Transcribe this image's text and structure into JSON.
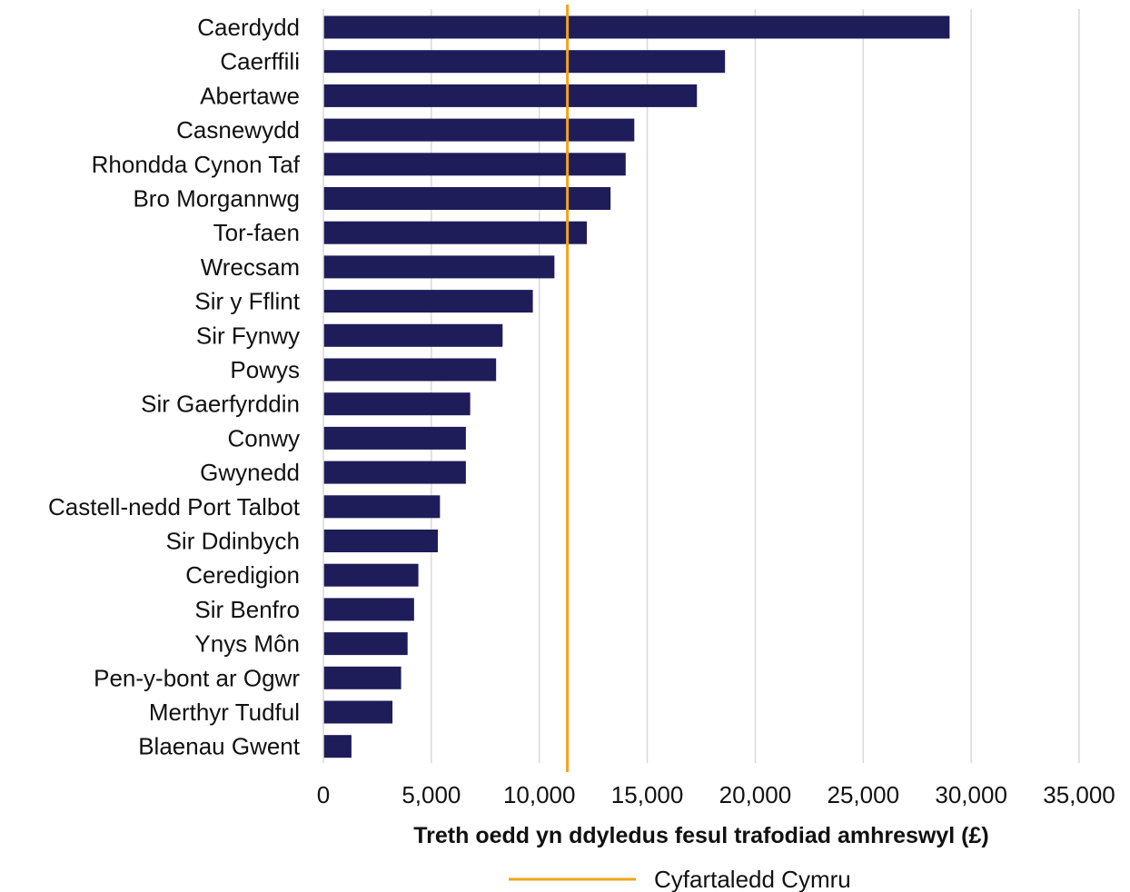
{
  "chart_data": {
    "type": "bar",
    "orientation": "horizontal",
    "categories": [
      "Caerdydd",
      "Caerffili",
      "Abertawe",
      "Casnewydd",
      "Rhondda Cynon Taf",
      "Bro Morgannwg",
      "Tor-faen",
      "Wrecsam",
      "Sir y Fflint",
      "Sir Fynwy",
      "Powys",
      "Sir Gaerfyrddin",
      "Conwy",
      "Gwynedd",
      "Castell-nedd Port Talbot",
      "Sir Ddinbych",
      "Ceredigion",
      "Sir Benfro",
      "Ynys Môn",
      "Pen-y-bont ar Ogwr",
      "Merthyr Tudful",
      "Blaenau Gwent"
    ],
    "values": [
      29000,
      18600,
      17300,
      14400,
      14000,
      13300,
      12200,
      10700,
      9700,
      8300,
      8000,
      6800,
      6600,
      6600,
      5400,
      5300,
      4400,
      4200,
      3900,
      3600,
      3200,
      1300
    ],
    "xlim": [
      0,
      35000
    ],
    "xticks": [
      "0",
      "5,000",
      "10,000",
      "15,000",
      "20,000",
      "25,000",
      "30,000",
      "35,000"
    ],
    "xtick_values": [
      0,
      5000,
      10000,
      15000,
      20000,
      25000,
      30000,
      35000
    ],
    "xlabel": "Treth oedd yn ddyledus fesul trafodiad amhreswyl (£)",
    "grid": "vertical",
    "bar_color": "#1f1c5a",
    "reference_line": {
      "name": "Cyfartaledd Cymru",
      "value": 11300,
      "color": "#f0a418"
    },
    "legend_position": "bottom"
  }
}
